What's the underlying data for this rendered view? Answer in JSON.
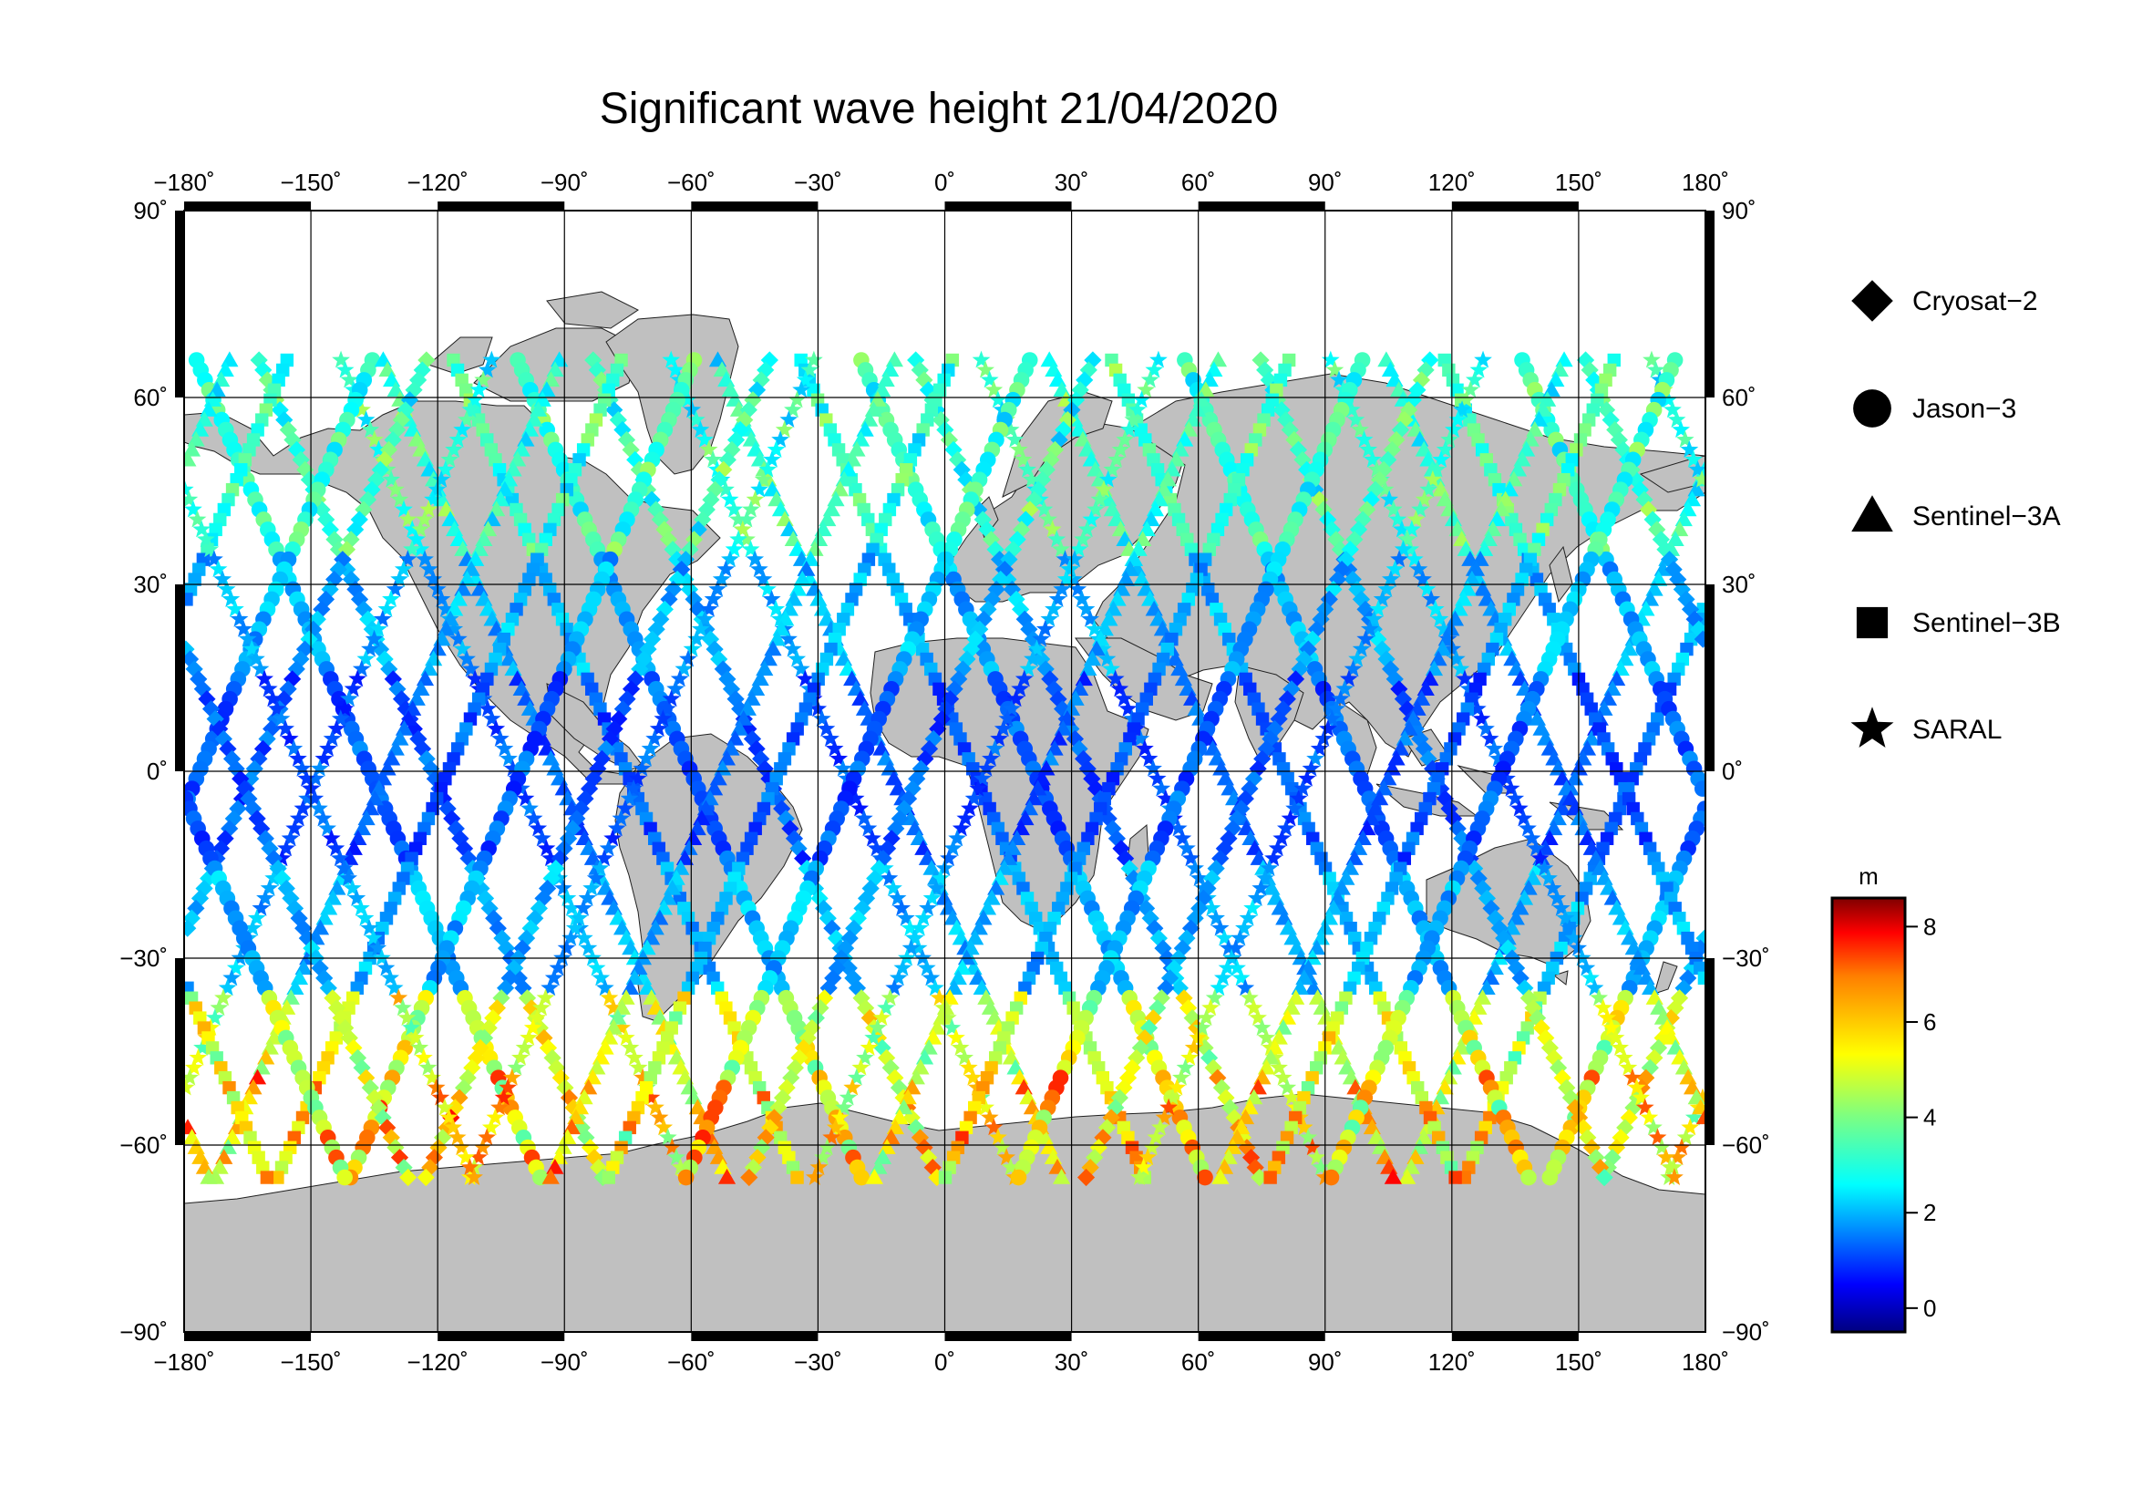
{
  "title": "Significant wave height 21/04/2020",
  "axes": {
    "lon_ticks": [
      "−180˚",
      "−150˚",
      "−120˚",
      "−90˚",
      "−60˚",
      "−30˚",
      "0˚",
      "30˚",
      "60˚",
      "90˚",
      "120˚",
      "150˚",
      "180˚"
    ],
    "lat_ticks": [
      "90˚",
      "60˚",
      "30˚",
      "0˚",
      "−30˚",
      "−60˚",
      "−90˚"
    ],
    "lon_values": [
      -180,
      -150,
      -120,
      -90,
      -60,
      -30,
      0,
      30,
      60,
      90,
      120,
      150,
      180
    ],
    "lat_values": [
      90,
      60,
      30,
      0,
      -30,
      -60,
      -90
    ]
  },
  "legend": {
    "items": [
      {
        "label": "Cryosat−2",
        "marker": "diamond"
      },
      {
        "label": "Jason−3",
        "marker": "circle"
      },
      {
        "label": "Sentinel−3A",
        "marker": "triangle"
      },
      {
        "label": "Sentinel−3B",
        "marker": "square"
      },
      {
        "label": "SARAL",
        "marker": "star"
      }
    ]
  },
  "colorbar": {
    "unit": "m",
    "ticks": [
      "0",
      "2",
      "4",
      "6",
      "8"
    ],
    "tick_values": [
      0,
      2,
      4,
      6,
      8
    ],
    "range": [
      -0.5,
      8.6
    ],
    "colormap": "jet"
  },
  "colors": {
    "land": "#c0c0c0",
    "ocean": "#ffffff",
    "frame": "#000000"
  }
}
